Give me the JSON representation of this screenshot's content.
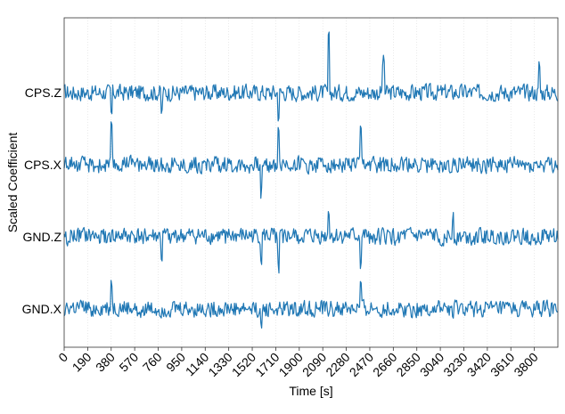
{
  "chart_data": {
    "type": "line",
    "ylabel": "Scaled Coefficient",
    "xlabel": "Time [s]",
    "xlim": [
      0,
      3990
    ],
    "x_ticks": [
      0,
      190,
      380,
      570,
      760,
      950,
      1140,
      1330,
      1520,
      1710,
      1900,
      2090,
      2280,
      2470,
      2660,
      2850,
      3040,
      3230,
      3420,
      3610,
      3800
    ],
    "grid": "vertical dotted",
    "series": [
      {
        "name": "CPS.Z",
        "baseline": 3,
        "spikes": [
          [
            2140,
            0.72
          ],
          [
            2580,
            0.42
          ],
          [
            3840,
            0.36
          ],
          [
            380,
            -0.3
          ],
          [
            1730,
            -0.3
          ],
          [
            790,
            -0.28
          ]
        ]
      },
      {
        "name": "CPS.X",
        "baseline": 2,
        "spikes": [
          [
            380,
            0.48
          ],
          [
            1730,
            0.55
          ],
          [
            2400,
            0.45
          ],
          [
            2140,
            0.32
          ],
          [
            1590,
            -0.38
          ],
          [
            2140,
            -0.3
          ]
        ]
      },
      {
        "name": "GND.Z",
        "baseline": 1,
        "spikes": [
          [
            2140,
            0.38
          ],
          [
            3140,
            0.32
          ],
          [
            1730,
            -0.4
          ],
          [
            1590,
            -0.32
          ],
          [
            2400,
            -0.38
          ],
          [
            790,
            -0.3
          ]
        ]
      },
      {
        "name": "GND.X",
        "baseline": 0,
        "spikes": [
          [
            380,
            0.38
          ],
          [
            2400,
            0.32
          ],
          [
            1730,
            0.3
          ],
          [
            1590,
            -0.3
          ],
          [
            1730,
            -0.38
          ],
          [
            3140,
            -0.12
          ]
        ]
      }
    ]
  }
}
